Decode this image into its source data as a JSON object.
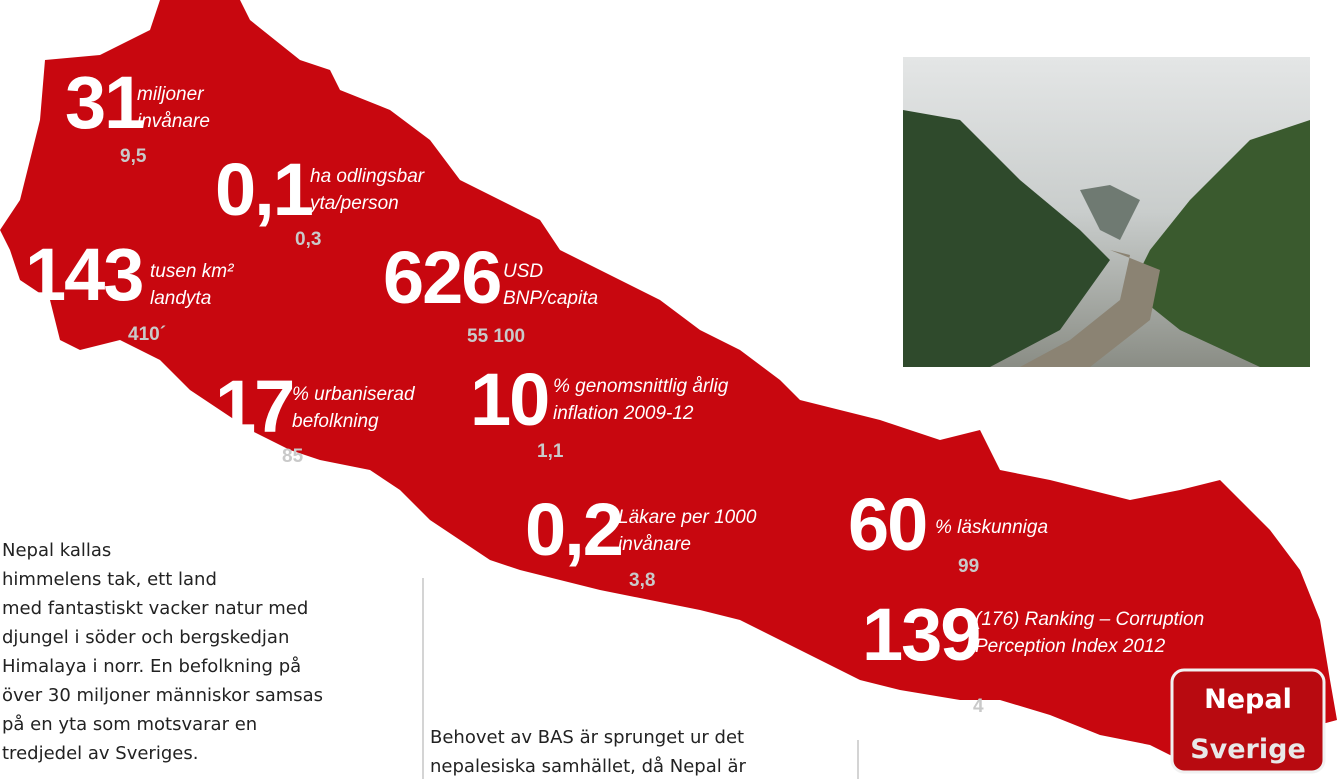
{
  "stats": [
    {
      "value": "31",
      "label": [
        "miljoner",
        "invånare"
      ],
      "compare": "9,5"
    },
    {
      "value": "0,1",
      "label": [
        "ha odlingsbar",
        "yta/person"
      ],
      "compare": "0,3"
    },
    {
      "value": "143",
      "label": [
        "tusen km²",
        "landyta"
      ],
      "compare": "410´"
    },
    {
      "value": "626",
      "label": [
        "USD",
        "BNP/capita"
      ],
      "compare": "55 100"
    },
    {
      "value": "17",
      "label": [
        "% urbaniserad",
        "befolkning"
      ],
      "compare": "85"
    },
    {
      "value": "10",
      "label": [
        "% genomsnittlig årlig",
        "inflation 2009-12"
      ],
      "compare": "1,1"
    },
    {
      "value": "0,2",
      "label": [
        "Läkare per 1000",
        "invånare"
      ],
      "compare": "3,8"
    },
    {
      "value": "60",
      "label": [
        "% läskunniga"
      ],
      "compare": "99"
    },
    {
      "value": "139",
      "label": [
        "(176) Ranking – Corruption",
        "Perception Index 2012"
      ],
      "compare": "4"
    }
  ],
  "legend": {
    "primary": "Nepal",
    "secondary": "Sverige"
  },
  "intro": [
    "Nepal kallas",
    "himmelens tak, ett land",
    "med fantastiskt vacker natur med",
    "djungel i söder och bergskedjan",
    "Himalaya i norr. En befolkning på",
    "över 30 miljoner människor samsas",
    "på en yta som motsvarar en",
    "tredjedel av Sveriges."
  ],
  "body": [
    "Behovet av BAS är sprunget ur det",
    "nepalesiska samhället, då Nepal är"
  ]
}
